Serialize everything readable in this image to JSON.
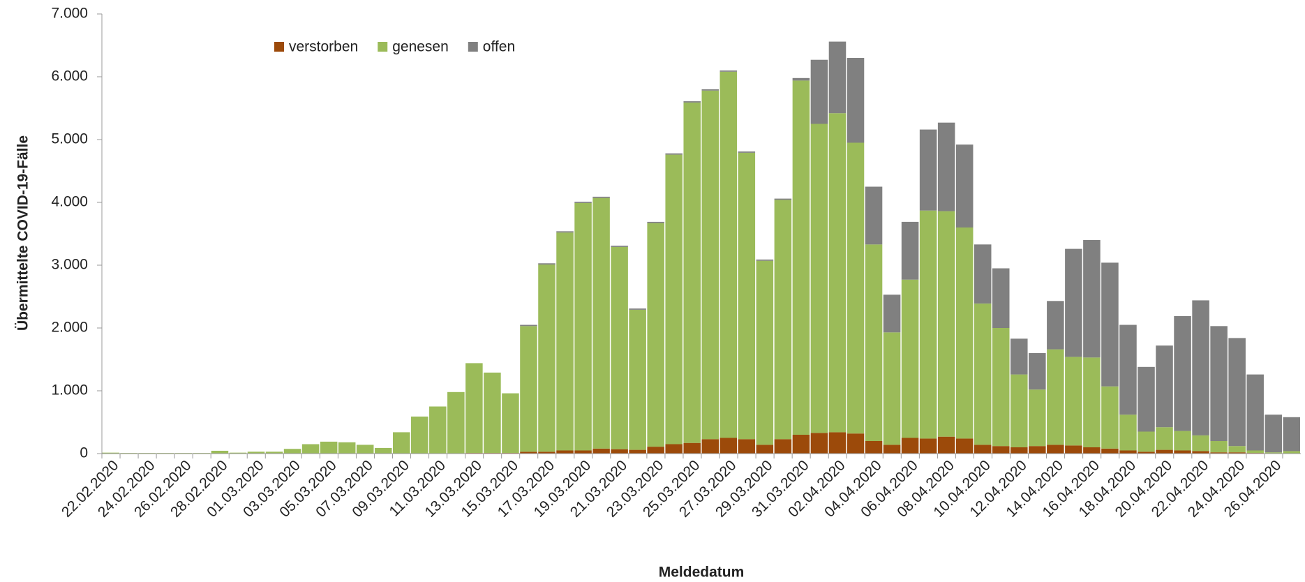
{
  "chart_data": {
    "type": "stacked_bar",
    "x_label": "Meldedatum",
    "y_label": "Übermittelte COVID-19-Fälle",
    "categories": [
      "22.02.2020",
      null,
      "24.02.2020",
      null,
      "26.02.2020",
      null,
      "28.02.2020",
      null,
      "01.03.2020",
      null,
      "03.03.2020",
      null,
      "05.03.2020",
      null,
      "07.03.2020",
      null,
      "09.03.2020",
      null,
      "11.03.2020",
      null,
      "13.03.2020",
      null,
      "15.03.2020",
      null,
      "17.03.2020",
      null,
      "19.03.2020",
      null,
      "21.03.2020",
      null,
      "23.03.2020",
      null,
      "25.03.2020",
      null,
      "27.03.2020",
      null,
      "29.03.2020",
      null,
      "31.03.2020",
      null,
      "02.04.2020",
      null,
      "04.04.2020",
      null,
      "06.04.2020",
      null,
      "08.04.2020",
      null,
      "10.04.2020",
      null,
      "12.04.2020",
      null,
      "14.04.2020",
      null,
      "16.04.2020",
      null,
      "18.04.2020",
      null,
      "20.04.2020",
      null,
      "22.04.2020",
      null,
      "24.04.2020",
      null,
      "26.04.2020",
      null
    ],
    "series": [
      {
        "name": "verstorben",
        "color": "#9c4a0a",
        "values": [
          0,
          0,
          0,
          0,
          0,
          0,
          0,
          0,
          0,
          0,
          0,
          0,
          0,
          0,
          0,
          0,
          0,
          0,
          0,
          0,
          10,
          10,
          10,
          30,
          30,
          50,
          50,
          80,
          70,
          60,
          110,
          150,
          170,
          230,
          250,
          230,
          140,
          230,
          300,
          330,
          340,
          320,
          200,
          140,
          250,
          240,
          270,
          240,
          140,
          120,
          100,
          120,
          140,
          130,
          100,
          80,
          50,
          30,
          60,
          50,
          40,
          20,
          20,
          10,
          5,
          5
        ]
      },
      {
        "name": "genesen",
        "color": "#9bbb59",
        "values": [
          15,
          10,
          10,
          10,
          10,
          10,
          45,
          15,
          30,
          30,
          75,
          150,
          190,
          180,
          140,
          90,
          340,
          590,
          750,
          980,
          1430,
          1280,
          950,
          2000,
          2980,
          3470,
          3940,
          3990,
          3220,
          2230,
          3560,
          4610,
          5420,
          5550,
          5830,
          4560,
          2930,
          3810,
          5640,
          4920,
          5080,
          4630,
          3130,
          1790,
          2520,
          3630,
          3590,
          3360,
          2250,
          1880,
          1160,
          900,
          1520,
          1410,
          1430,
          990,
          570,
          320,
          360,
          310,
          250,
          180,
          100,
          40,
          15,
          35
        ]
      },
      {
        "name": "offen",
        "color": "#808080",
        "values": [
          0,
          0,
          0,
          0,
          0,
          0,
          0,
          0,
          0,
          0,
          0,
          0,
          0,
          0,
          0,
          0,
          0,
          0,
          0,
          0,
          0,
          0,
          0,
          20,
          20,
          20,
          20,
          20,
          20,
          20,
          20,
          20,
          20,
          20,
          20,
          20,
          20,
          20,
          40,
          1020,
          1140,
          1350,
          920,
          600,
          920,
          1290,
          1410,
          1320,
          940,
          950,
          570,
          580,
          770,
          1720,
          1870,
          1970,
          1430,
          1030,
          1300,
          1830,
          2150,
          1830,
          1720,
          1210,
          600,
          540
        ]
      }
    ],
    "ylim": [
      0,
      7000
    ],
    "yticks": [
      0,
      {
        "value": 1000,
        "label": "1.000"
      },
      {
        "value": 2000,
        "label": "2.000"
      },
      {
        "value": 3000,
        "label": "3.000"
      },
      {
        "value": 4000,
        "label": "4.000"
      },
      {
        "value": 5000,
        "label": "5.000"
      },
      {
        "value": 6000,
        "label": "6.000"
      },
      {
        "value": 7000,
        "label": "7.000"
      }
    ],
    "grid": false,
    "legend": "top"
  }
}
